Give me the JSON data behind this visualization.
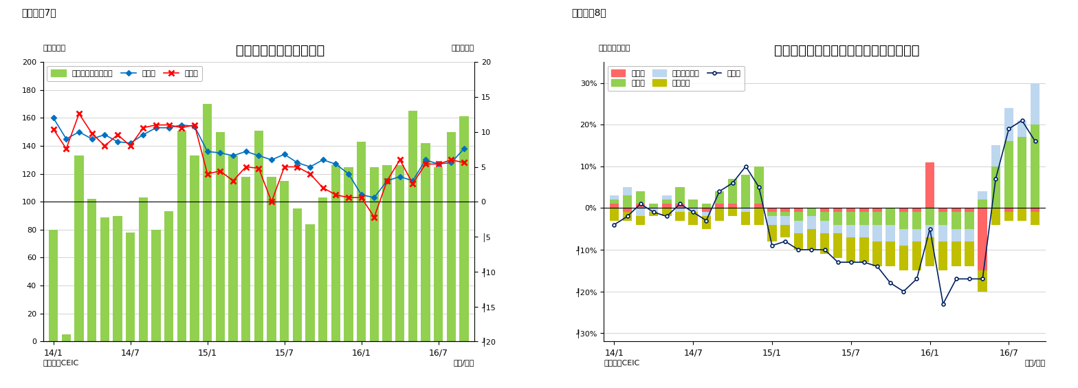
{
  "fig7": {
    "title": "インドネシアの賿易収支",
    "ylabel_left": "（億ドル）",
    "ylabel_right": "（億ドル）",
    "xlabel": "（年/月）",
    "source": "（資料）CEIC",
    "header": "（図表＇7）",
    "legend_bar": "賿易収支（右目盛）",
    "legend_export": "輸出額",
    "legend_import": "輸入額",
    "ylim_left": [
      0,
      200
    ],
    "yticks_left": [
      0,
      20,
      40,
      60,
      80,
      100,
      120,
      140,
      160,
      180,
      200
    ],
    "yticks_left_labels": [
      "0",
      "20",
      "40",
      "60",
      "80",
      "100",
      "120",
      "140",
      "160",
      "180",
      "200"
    ],
    "ylim_right": [
      -20,
      20
    ],
    "yticks_right_vals": [
      20,
      15,
      10,
      5,
      0,
      -5,
      -10,
      -15,
      -20
    ],
    "yticks_right_labels": [
      "20",
      "15",
      "10",
      "5",
      "0",
      "│5",
      "┦10",
      "┦15",
      "┦20"
    ],
    "xtick_labels": [
      "14/1",
      "14/7",
      "15/1",
      "15/7",
      "16/1",
      "16/7"
    ],
    "xtick_pos": [
      0,
      6,
      12,
      18,
      24,
      30
    ],
    "trade_balance": [
      80,
      5,
      133,
      102,
      89,
      90,
      78,
      103,
      80,
      93,
      151,
      133,
      170,
      150,
      133,
      118,
      151,
      118,
      115,
      95,
      84,
      103,
      126,
      125,
      143,
      125,
      126,
      126,
      165,
      142,
      125,
      150,
      161
    ],
    "exports": [
      160,
      145,
      150,
      145,
      148,
      143,
      142,
      148,
      153,
      153,
      155,
      154,
      136,
      135,
      133,
      136,
      133,
      130,
      134,
      128,
      125,
      130,
      127,
      120,
      105,
      103,
      115,
      118,
      115,
      130,
      127,
      128,
      138
    ],
    "imports": [
      152,
      138,
      163,
      149,
      140,
      148,
      140,
      153,
      155,
      155,
      153,
      155,
      120,
      122,
      115,
      125,
      124,
      100,
      125,
      125,
      120,
      110,
      105,
      103,
      103,
      89,
      115,
      130,
      113,
      127,
      127,
      130,
      128
    ],
    "bar_color": "#92D050",
    "export_color": "#0070C0",
    "import_color": "#FF0000",
    "zero_line": 100,
    "n_points": 33
  },
  "fig8": {
    "title": "インドネシア　輸出の伸び率（品目別）",
    "ylabel_left": "（前年同月比）",
    "xlabel": "（年/月）",
    "source": "（資料）CEIC",
    "header": "（図表＇8）",
    "legend_agri": "農産品",
    "legend_manuf": "製造品",
    "legend_mining": "鉱業製品など",
    "legend_oilgas": "石油ガス",
    "legend_export": "輸出額",
    "ylim": [
      -0.32,
      0.35
    ],
    "yticks_vals": [
      0.3,
      0.2,
      0.1,
      0.0,
      -0.1,
      -0.2,
      -0.3
    ],
    "yticks_labels": [
      "30%",
      "20%",
      "10%",
      "0%",
      "┦10%",
      "┦20%",
      "┦30%"
    ],
    "xtick_labels": [
      "14/1",
      "14/7",
      "15/1",
      "15/7",
      "16/1",
      "16/7"
    ],
    "xtick_pos": [
      0,
      6,
      12,
      18,
      24,
      30
    ],
    "agri": [
      0.01,
      -0.01,
      0.01,
      0.0,
      0.01,
      0.01,
      0.0,
      -0.01,
      0.01,
      0.01,
      0.0,
      0.01,
      -0.01,
      -0.01,
      -0.01,
      0.0,
      -0.01,
      -0.01,
      -0.01,
      -0.01,
      -0.01,
      0.0,
      -0.01,
      -0.01,
      0.11,
      -0.01,
      -0.01,
      -0.01,
      -0.15,
      0.0,
      -0.01,
      0.0,
      -0.01
    ],
    "manuf": [
      0.01,
      0.03,
      0.03,
      0.01,
      0.01,
      0.04,
      0.02,
      0.01,
      0.03,
      0.06,
      0.08,
      0.09,
      -0.01,
      -0.01,
      -0.02,
      -0.02,
      -0.02,
      -0.03,
      -0.03,
      -0.03,
      -0.03,
      -0.04,
      -0.04,
      -0.04,
      -0.04,
      -0.03,
      -0.04,
      -0.04,
      0.02,
      0.1,
      0.16,
      0.17,
      0.2
    ],
    "mining": [
      0.01,
      0.02,
      -0.02,
      -0.01,
      0.01,
      -0.01,
      -0.01,
      -0.01,
      0.0,
      0.0,
      -0.01,
      0.0,
      -0.02,
      -0.02,
      -0.03,
      -0.03,
      -0.03,
      -0.02,
      -0.03,
      -0.03,
      -0.04,
      -0.04,
      -0.04,
      -0.03,
      -0.03,
      -0.04,
      -0.03,
      -0.03,
      0.02,
      0.05,
      0.08,
      0.04,
      0.1
    ],
    "oilgas": [
      -0.03,
      -0.02,
      -0.02,
      -0.01,
      -0.02,
      -0.02,
      -0.03,
      -0.03,
      -0.03,
      -0.02,
      -0.03,
      -0.04,
      -0.04,
      -0.03,
      -0.04,
      -0.05,
      -0.05,
      -0.06,
      -0.06,
      -0.06,
      -0.06,
      -0.06,
      -0.06,
      -0.07,
      -0.07,
      -0.07,
      -0.06,
      -0.06,
      -0.05,
      -0.04,
      -0.02,
      -0.03,
      -0.03
    ],
    "export_growth": [
      -0.04,
      -0.02,
      0.01,
      -0.01,
      -0.02,
      0.01,
      -0.01,
      -0.03,
      0.04,
      0.06,
      0.1,
      0.05,
      -0.09,
      -0.08,
      -0.1,
      -0.1,
      -0.1,
      -0.13,
      -0.13,
      -0.13,
      -0.14,
      -0.18,
      -0.2,
      -0.17,
      -0.05,
      -0.23,
      -0.17,
      -0.17,
      -0.17,
      0.07,
      0.19,
      0.21,
      0.16
    ],
    "agri_color": "#FF6666",
    "manuf_color": "#92D050",
    "mining_color": "#BDD7EE",
    "oilgas_color": "#BFBF00",
    "line_color": "#002060",
    "n_points": 33
  }
}
